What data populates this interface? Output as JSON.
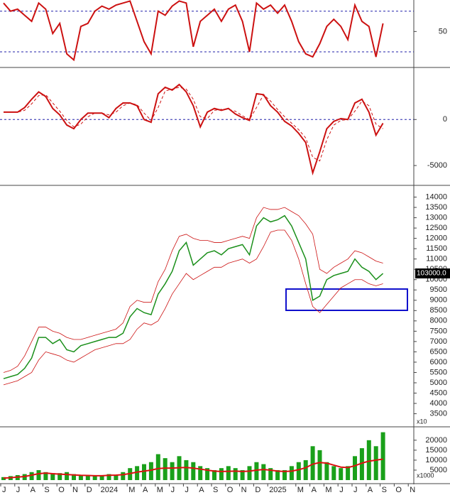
{
  "chart_data": [
    {
      "type": "line",
      "yticks": [
        50
      ],
      "ylim": [
        16,
        81
      ],
      "ref_lines": [
        30,
        70
      ],
      "series": [
        {
          "color": "#cc1111",
          "style": "line",
          "width": 2,
          "values": [
            78,
            70,
            72,
            66,
            60,
            78,
            72,
            48,
            58,
            28,
            22,
            55,
            58,
            70,
            75,
            72,
            76,
            78,
            80,
            60,
            40,
            28,
            70,
            66,
            75,
            80,
            78,
            35,
            60,
            66,
            72,
            60,
            72,
            76,
            60,
            30,
            78,
            72,
            76,
            68,
            76,
            60,
            40,
            28,
            25,
            38,
            55,
            62,
            55,
            42,
            76,
            60,
            55,
            25,
            58,
            null,
            null,
            null,
            null,
            null
          ]
        }
      ]
    },
    {
      "type": "line",
      "yticks": [
        0,
        -5000
      ],
      "ylim": [
        -7000,
        5500
      ],
      "ref_lines": [
        0
      ],
      "series": [
        {
          "color": "#cc1111",
          "style": "line",
          "width": 2,
          "values": [
            800,
            800,
            800,
            1300,
            2200,
            3000,
            2500,
            1200,
            500,
            -600,
            -1000,
            0,
            700,
            700,
            700,
            200,
            1200,
            1800,
            1800,
            1500,
            0,
            -300,
            2800,
            3500,
            3200,
            3800,
            3000,
            1500,
            -800,
            800,
            1200,
            1000,
            1200,
            600,
            200,
            -100,
            2800,
            2700,
            1500,
            800,
            -200,
            -700,
            -1500,
            -2500,
            -5800,
            -3500,
            -1000,
            -200,
            100,
            0,
            1800,
            2200,
            800,
            -1700,
            -400,
            null,
            null,
            null,
            null,
            null
          ]
        },
        {
          "color": "#cc1111",
          "style": "dash",
          "width": 1,
          "values": [
            800,
            800,
            800,
            1000,
            1700,
            2600,
            2700,
            1800,
            900,
            -100,
            -800,
            -500,
            300,
            700,
            700,
            500,
            800,
            1500,
            1800,
            1600,
            700,
            -100,
            1300,
            3100,
            3300,
            3500,
            3300,
            2200,
            300,
            100,
            1000,
            1100,
            1100,
            900,
            400,
            0,
            1300,
            2700,
            2000,
            1100,
            300,
            -400,
            -1100,
            -2000,
            -4100,
            -4500,
            -2200,
            -600,
            -100,
            0,
            900,
            2000,
            1500,
            -500,
            -1000,
            null,
            null,
            null,
            null,
            null
          ]
        }
      ]
    },
    {
      "type": "line",
      "yticks": [
        3500,
        4000,
        4500,
        5000,
        5500,
        6000,
        6500,
        7000,
        7500,
        8000,
        8500,
        9000,
        9500,
        10000,
        10500,
        11000,
        11500,
        12000,
        12500,
        13000,
        13500,
        14000
      ],
      "ylim": [
        2900,
        14500
      ],
      "y_unit": "x10",
      "last_label": "103000.0",
      "series": [
        {
          "color": "#1a8f1a",
          "style": "line",
          "width": 1.5,
          "values": [
            5200,
            5300,
            5400,
            5700,
            6200,
            7200,
            7200,
            6900,
            7100,
            6600,
            6500,
            6800,
            6900,
            7000,
            7100,
            7200,
            7200,
            7400,
            8200,
            8600,
            8400,
            8300,
            9300,
            9800,
            10400,
            11400,
            11800,
            10700,
            11000,
            11300,
            11400,
            11200,
            11500,
            11600,
            11700,
            11200,
            12600,
            13000,
            12800,
            12900,
            13100,
            12600,
            11800,
            11000,
            9000,
            9200,
            10000,
            10200,
            10300,
            10400,
            11000,
            10600,
            10400,
            10000,
            10300,
            null,
            null,
            null,
            null,
            null
          ]
        },
        {
          "color": "#cc1111",
          "style": "line",
          "width": 0.8,
          "values": [
            5500,
            5600,
            5800,
            6300,
            7000,
            7700,
            7700,
            7500,
            7400,
            7200,
            7100,
            7100,
            7200,
            7300,
            7400,
            7500,
            7600,
            7900,
            8700,
            9000,
            8900,
            8900,
            9900,
            10500,
            11400,
            12100,
            12200,
            12000,
            11900,
            11900,
            11800,
            11800,
            11900,
            12000,
            12100,
            12000,
            13000,
            13500,
            13400,
            13400,
            13500,
            13300,
            13100,
            12700,
            12200,
            10500,
            10300,
            10600,
            10800,
            11000,
            11400,
            11300,
            11100,
            10900,
            10800,
            null,
            null,
            null,
            null,
            null
          ]
        },
        {
          "color": "#cc1111",
          "style": "line",
          "width": 0.8,
          "values": [
            4900,
            5000,
            5100,
            5300,
            5500,
            6100,
            6500,
            6400,
            6300,
            6100,
            6000,
            6200,
            6400,
            6600,
            6700,
            6800,
            6900,
            6900,
            7100,
            7600,
            7900,
            7800,
            8000,
            8600,
            9300,
            9800,
            10300,
            10000,
            10200,
            10400,
            10600,
            10600,
            10800,
            10900,
            11000,
            10800,
            11000,
            11600,
            12300,
            12400,
            12400,
            11900,
            11000,
            9800,
            8700,
            8400,
            8800,
            9200,
            9600,
            9800,
            10000,
            10000,
            9800,
            9700,
            9800,
            null,
            null,
            null,
            null,
            null
          ]
        }
      ]
    },
    {
      "type": "bar",
      "yticks": [
        5000,
        10000,
        15000,
        20000
      ],
      "ylim": [
        0,
        26000
      ],
      "y_unit": "x1000",
      "categories": [
        "J",
        null,
        "J",
        null,
        "A",
        null,
        "S",
        null,
        "O",
        null,
        "N",
        null,
        "D",
        null,
        "2024",
        null,
        null,
        null,
        "M",
        null,
        "A",
        null,
        "M",
        null,
        "J",
        null,
        "J",
        null,
        "A",
        null,
        "S",
        null,
        "O",
        null,
        "N",
        null,
        "D",
        null,
        "2025",
        null,
        null,
        null,
        "M",
        null,
        "A",
        null,
        "M",
        null,
        "J",
        null,
        "J",
        null,
        "A",
        null,
        "S",
        null,
        "O",
        null,
        "N",
        null
      ],
      "series": [
        {
          "color": "#1aa01a",
          "style": "bar",
          "values": [
            1500,
            2000,
            2500,
            3000,
            4000,
            5000,
            4000,
            3500,
            3500,
            4000,
            3000,
            2500,
            2500,
            2000,
            2500,
            3000,
            2500,
            4000,
            6000,
            7000,
            8000,
            9000,
            13000,
            11000,
            9000,
            12000,
            10000,
            9000,
            7000,
            6000,
            5000,
            6000,
            7000,
            6000,
            5000,
            7000,
            9000,
            8000,
            6000,
            5000,
            5000,
            7000,
            9000,
            10000,
            17000,
            15000,
            9000,
            7000,
            6000,
            7000,
            12000,
            16000,
            20000,
            17000,
            24000,
            null,
            null,
            null,
            null,
            null
          ]
        },
        {
          "color": "#dd1111",
          "style": "line",
          "width": 2,
          "values": [
            1000,
            1200,
            1500,
            1800,
            2500,
            3200,
            3500,
            3200,
            3000,
            2800,
            2600,
            2400,
            2300,
            2200,
            2200,
            2400,
            2500,
            2700,
            3300,
            4000,
            4500,
            5000,
            5800,
            6000,
            6000,
            6200,
            6300,
            6000,
            5500,
            5000,
            4500,
            4300,
            4400,
            4500,
            4300,
            4500,
            5000,
            5300,
            5000,
            4500,
            4300,
            4500,
            5200,
            6200,
            8000,
            8800,
            8500,
            7500,
            6500,
            6300,
            7200,
            8500,
            9500,
            10000,
            10500,
            null,
            null,
            null,
            null,
            null
          ]
        }
      ]
    }
  ]
}
